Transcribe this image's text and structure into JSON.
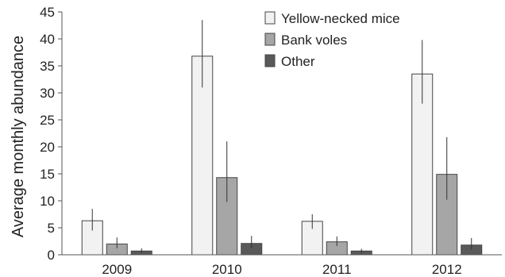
{
  "chart_data": {
    "type": "bar",
    "ylabel": "Average monthly abundance",
    "xlabel": "",
    "ylim": [
      0,
      45
    ],
    "yticks": [
      0,
      5,
      10,
      15,
      20,
      25,
      30,
      35,
      40,
      45
    ],
    "categories": [
      "2009",
      "2010",
      "2011",
      "2012"
    ],
    "legend_position": "top-right",
    "series": [
      {
        "name": "Yellow-necked mice",
        "color": "#f2f2f2",
        "values": [
          6.3,
          36.8,
          6.2,
          33.5
        ],
        "error_low": [
          4.5,
          31.0,
          4.8,
          28.0
        ],
        "error_high": [
          8.5,
          43.5,
          7.5,
          39.8
        ]
      },
      {
        "name": "Bank voles",
        "color": "#a6a6a6",
        "values": [
          2.0,
          14.3,
          2.4,
          14.9
        ],
        "error_low": [
          1.2,
          9.8,
          1.6,
          10.2
        ],
        "error_high": [
          3.2,
          21.0,
          3.4,
          21.8
        ]
      },
      {
        "name": "Other",
        "color": "#595959",
        "values": [
          0.7,
          2.1,
          0.7,
          1.8
        ],
        "error_low": [
          0.3,
          1.2,
          0.3,
          1.0
        ],
        "error_high": [
          1.2,
          3.5,
          1.1,
          3.1
        ]
      }
    ]
  }
}
